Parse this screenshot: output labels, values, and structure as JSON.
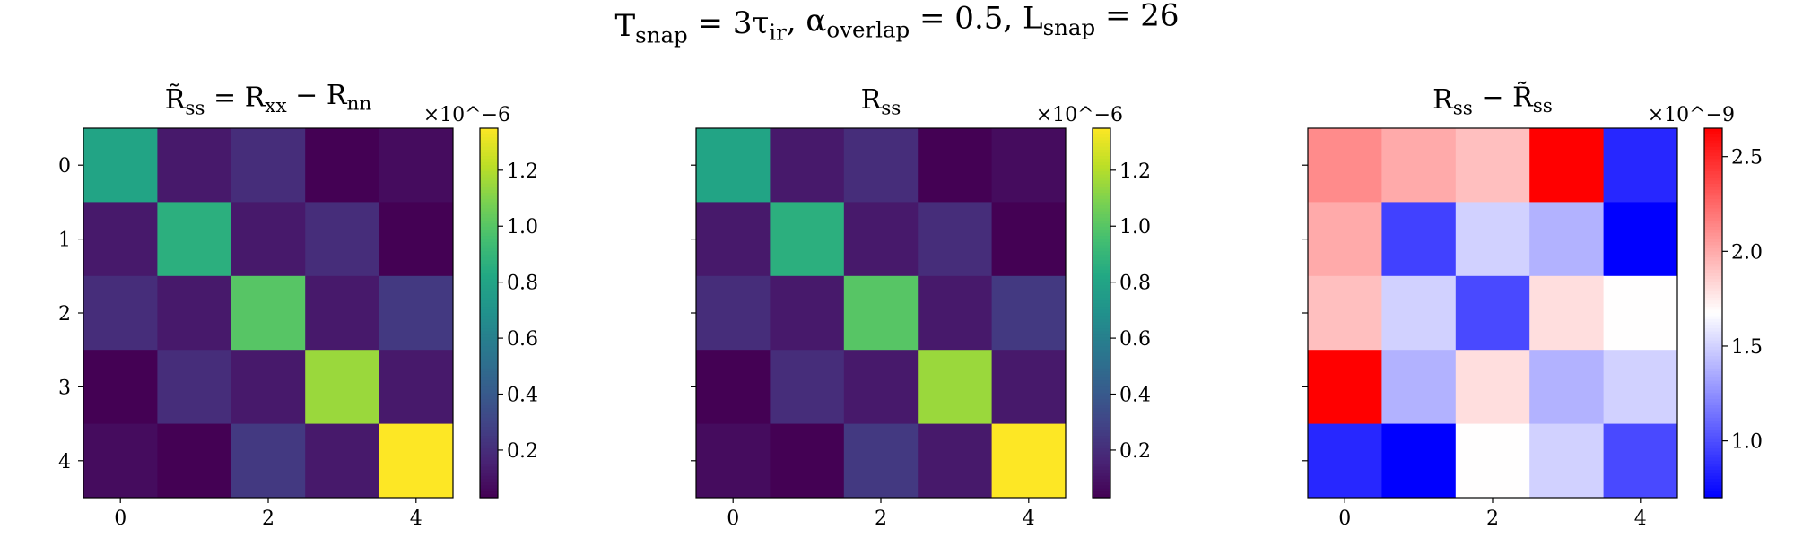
{
  "figure": {
    "suptitle": "T_snap = 3τ_ir,   α_overlap = 0.5,   L_snap = 26"
  },
  "chart_data": [
    {
      "type": "heatmap",
      "title": "R̃_ss = R_xx − R_nn",
      "colormap": "viridis",
      "x_ticks": [
        "0",
        "2",
        "4"
      ],
      "y_ticks": [
        "0",
        "1",
        "2",
        "3",
        "4"
      ],
      "colorbar": {
        "range": [
          0.03,
          1.35
        ],
        "ticks": [
          "0.2",
          "0.4",
          "0.6",
          "0.8",
          "1.0",
          "1.2"
        ],
        "tick_values": [
          0.2,
          0.4,
          0.6,
          0.8,
          1.0,
          1.2
        ],
        "multiplier": "×10^−6"
      },
      "matrix": [
        [
          0.8,
          0.12,
          0.2,
          0.03,
          0.07
        ],
        [
          0.12,
          0.86,
          0.12,
          0.2,
          0.03
        ],
        [
          0.2,
          0.12,
          1.0,
          0.12,
          0.25
        ],
        [
          0.03,
          0.2,
          0.12,
          1.15,
          0.12
        ],
        [
          0.07,
          0.03,
          0.25,
          0.12,
          1.35
        ]
      ]
    },
    {
      "type": "heatmap",
      "title": "R_ss",
      "colormap": "viridis",
      "x_ticks": [
        "0",
        "2",
        "4"
      ],
      "y_ticks": [
        "0",
        "1",
        "2",
        "3",
        "4"
      ],
      "colorbar": {
        "range": [
          0.03,
          1.35
        ],
        "ticks": [
          "0.2",
          "0.4",
          "0.6",
          "0.8",
          "1.0",
          "1.2"
        ],
        "tick_values": [
          0.2,
          0.4,
          0.6,
          0.8,
          1.0,
          1.2
        ],
        "multiplier": "×10^−6"
      },
      "matrix": [
        [
          0.8,
          0.12,
          0.2,
          0.03,
          0.07
        ],
        [
          0.12,
          0.86,
          0.12,
          0.2,
          0.03
        ],
        [
          0.2,
          0.12,
          1.0,
          0.12,
          0.25
        ],
        [
          0.03,
          0.2,
          0.12,
          1.15,
          0.12
        ],
        [
          0.07,
          0.03,
          0.25,
          0.12,
          1.35
        ]
      ]
    },
    {
      "type": "heatmap",
      "title": "R_ss − R̃_ss",
      "colormap": "bwr",
      "x_ticks": [
        "0",
        "2",
        "4"
      ],
      "y_ticks": [
        "0",
        "1",
        "2",
        "3",
        "4"
      ],
      "colorbar": {
        "range": [
          0.7,
          2.65
        ],
        "ticks": [
          "1.0",
          "1.5",
          "2.0",
          "2.5"
        ],
        "tick_values": [
          1.0,
          1.5,
          2.0,
          2.5
        ],
        "multiplier": "×10^−9"
      },
      "matrix": [
        [
          2.12,
          2.0,
          1.92,
          2.65,
          0.85
        ],
        [
          2.0,
          0.95,
          1.5,
          1.38,
          0.7
        ],
        [
          1.92,
          1.5,
          0.98,
          1.8,
          1.68
        ],
        [
          2.65,
          1.38,
          1.8,
          1.38,
          1.5
        ],
        [
          0.85,
          0.7,
          1.68,
          1.5,
          0.98
        ]
      ]
    }
  ]
}
